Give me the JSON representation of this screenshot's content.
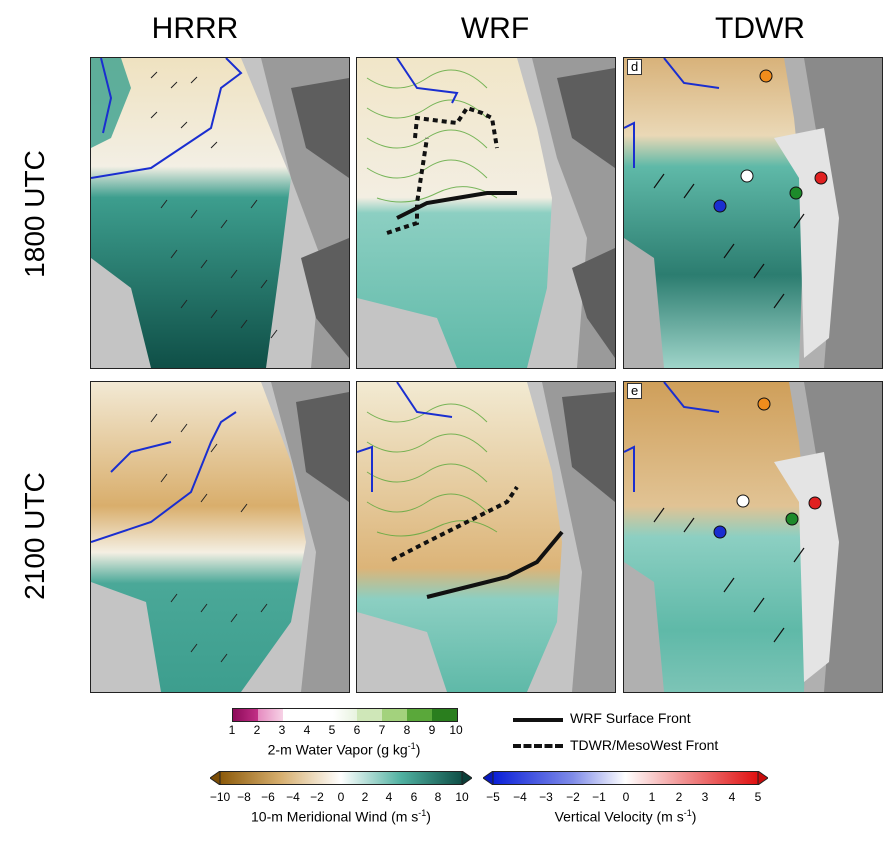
{
  "columns": [
    "HRRR",
    "WRF",
    "TDWR"
  ],
  "rows": [
    "1800 UTC",
    "2100 UTC"
  ],
  "panel_labels": {
    "tdwr_1800": "d",
    "tdwr_2100": "e"
  },
  "legend": {
    "surface_front": "WRF Surface Front",
    "mesowest_front": "TDWR/MesoWest Front"
  },
  "colorbars": {
    "water_vapor": {
      "label": "2-m Water Vapor (g kg",
      "label_sup": "-1",
      "label_end": ")",
      "ticks": [
        "1",
        "2",
        "3",
        "4",
        "5",
        "6",
        "7",
        "8",
        "9",
        "10"
      ]
    },
    "meridional_wind": {
      "label": "10-m Meridional Wind (m s",
      "label_sup": "-1",
      "label_end": ")",
      "ticks": [
        "−10",
        "−8",
        "−6",
        "−4",
        "−2",
        "0",
        "2",
        "4",
        "6",
        "8",
        "10"
      ],
      "low_color": "#8c5a0a",
      "mid_color": "#ffffff",
      "high_color": "#0f4f47"
    },
    "vertical_velocity": {
      "label": "Vertical Velocity (m s",
      "label_sup": "-1",
      "label_end": ")",
      "ticks": [
        "−5",
        "−4",
        "−3",
        "−2",
        "−1",
        "0",
        "1",
        "2",
        "3",
        "4",
        "5"
      ],
      "low_color": "#0a1fd8",
      "mid_color": "#ffffff",
      "high_color": "#e01010"
    }
  },
  "colors": {
    "terrain_light": "#c4c4c4",
    "terrain_mid": "#9a9a9a",
    "terrain_dark": "#5e5e5e",
    "boundary": "#1a2ed0",
    "station_orange": "#f08c1c",
    "station_white": "#ffffff",
    "station_red": "#e02020",
    "station_green": "#1d8a2a",
    "station_blue": "#1a2ed0"
  }
}
